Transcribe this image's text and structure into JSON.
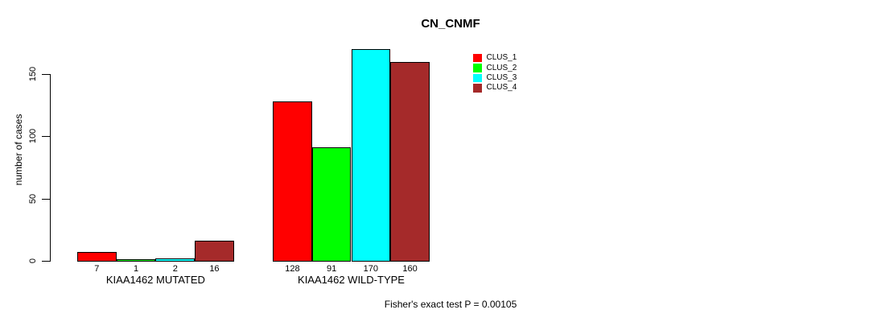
{
  "figure": {
    "background": "#FFFFFF",
    "text_color": "#000000"
  },
  "chart_data": {
    "type": "bar",
    "title": "CN_CNMF",
    "ylabel": "number of cases",
    "xlabel": "",
    "categories": [
      "KIAA1462 MUTATED",
      "KIAA1462 WILD-TYPE"
    ],
    "series": [
      {
        "name": "CLUS_1",
        "color": "#FF0000",
        "values": [
          7,
          128
        ]
      },
      {
        "name": "CLUS_2",
        "color": "#00FF00",
        "values": [
          1,
          91
        ]
      },
      {
        "name": "CLUS_3",
        "color": "#00FFFF",
        "values": [
          2,
          170
        ]
      },
      {
        "name": "CLUS_4",
        "color": "#A52A2A",
        "values": [
          16,
          160
        ]
      }
    ],
    "yticks": [
      0,
      50,
      100,
      150
    ],
    "ylim": [
      0,
      170
    ],
    "grid": false,
    "bar_value_labels_shown": true,
    "legend_position": "inside-top-right",
    "annotation": "Fisher's exact test P = 0.00105"
  }
}
